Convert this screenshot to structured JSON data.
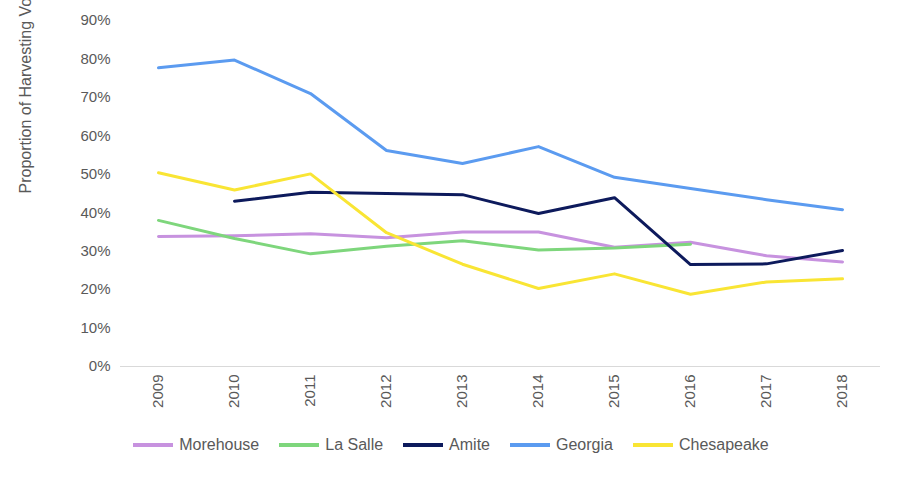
{
  "chart_data": {
    "type": "line",
    "y_label": "Proportion of Harvesting Volume From Thinning",
    "categories": [
      "2009",
      "2010",
      "2011",
      "2012",
      "2013",
      "2014",
      "2015",
      "2016",
      "2017",
      "2018"
    ],
    "series": [
      {
        "name": "Morehouse",
        "color": "#c792df",
        "values": [
          33.8,
          34.0,
          34.5,
          33.5,
          35.0,
          35.0,
          31.0,
          32.3,
          28.8,
          27.2
        ]
      },
      {
        "name": "La Salle",
        "color": "#7ed67c",
        "values": [
          38.0,
          33.3,
          29.3,
          31.3,
          32.7,
          30.3,
          30.8,
          31.8,
          null,
          null
        ]
      },
      {
        "name": "Amite",
        "color": "#0d1a5c",
        "values": [
          null,
          43.0,
          45.3,
          45.0,
          44.7,
          39.8,
          43.9,
          26.5,
          26.7,
          30.2
        ]
      },
      {
        "name": "Georgia",
        "color": "#5b9bf0",
        "values": [
          77.7,
          79.7,
          71.0,
          56.2,
          52.8,
          57.2,
          49.2,
          46.3,
          43.4,
          40.8
        ]
      },
      {
        "name": "Chesapeake",
        "color": "#f9e534",
        "values": [
          50.4,
          45.9,
          50.1,
          34.8,
          26.6,
          20.3,
          24.1,
          18.8,
          22.0,
          22.8
        ]
      }
    ],
    "ylim": [
      0,
      90
    ],
    "yticks": [
      {
        "value": 0,
        "label": "0%"
      },
      {
        "value": 10,
        "label": "10%"
      },
      {
        "value": 20,
        "label": "20%"
      },
      {
        "value": 30,
        "label": "30%"
      },
      {
        "value": 40,
        "label": "40%"
      },
      {
        "value": 50,
        "label": "50%"
      },
      {
        "value": 60,
        "label": "60%"
      },
      {
        "value": 70,
        "label": "70%"
      },
      {
        "value": 80,
        "label": "80%"
      },
      {
        "value": 90,
        "label": "90%"
      }
    ],
    "grid": false,
    "legend": "bottom"
  }
}
